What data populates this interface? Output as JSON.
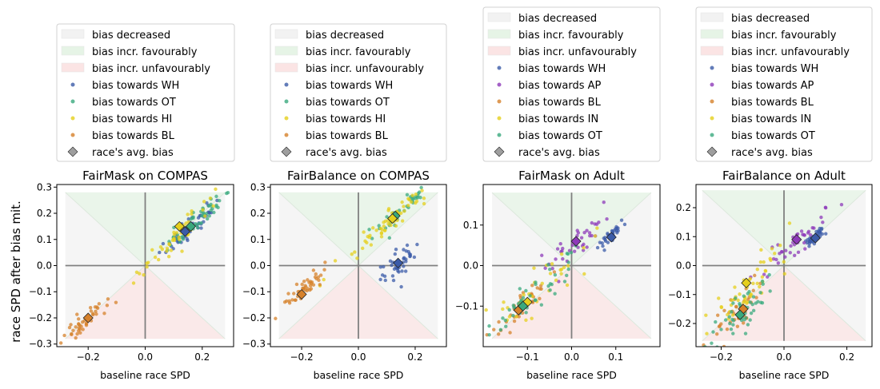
{
  "figure": {
    "ylabel": "race SPD after bias mit."
  },
  "colors": {
    "WH": "#3b5ba8",
    "OT": "#3aa97d",
    "HI": "#e5cf1c",
    "BL": "#d6812b",
    "AP": "#8e3ab9",
    "IN": "#e5cf1c",
    "region_decreased": "#f2f2f2",
    "region_favourably": "#e6f4e6",
    "region_unfavourably": "#fbe4e4",
    "avg_marker": "#9e9e9e",
    "axis_cross": "#808080"
  },
  "chart_data": [
    {
      "type": "scatter",
      "title": "FairMask on COMPAS",
      "xlabel": "baseline race SPD",
      "ylabel": "race SPD after bias mit.",
      "xlim": [
        -0.31,
        0.31
      ],
      "ylim": [
        -0.31,
        0.31
      ],
      "xticks": [
        -0.2,
        0.0,
        0.2
      ],
      "xtick_labels": [
        "−0.2",
        "0.0",
        "0.2"
      ],
      "yticks": [
        -0.3,
        -0.2,
        -0.1,
        0.0,
        0.1,
        0.2,
        0.3
      ],
      "ytick_labels": [
        "−0.3",
        "−0.2",
        "−0.1",
        "0.0",
        "0.1",
        "0.2",
        "0.3"
      ],
      "region_extent": 0.28,
      "legend": [
        {
          "label": "bias decreased",
          "kind": "patch",
          "color": "region_decreased"
        },
        {
          "label": "bias incr. favourably",
          "kind": "patch",
          "color": "region_favourably"
        },
        {
          "label": "bias incr. unfavourably",
          "kind": "patch",
          "color": "region_unfavourably"
        },
        {
          "label": "bias towards WH",
          "kind": "dot",
          "color": "WH"
        },
        {
          "label": "bias towards OT",
          "kind": "dot",
          "color": "OT"
        },
        {
          "label": "bias towards HI",
          "kind": "dot",
          "color": "HI"
        },
        {
          "label": "bias towards BL",
          "kind": "dot",
          "color": "BL"
        },
        {
          "label": "race's avg. bias",
          "kind": "diamond",
          "color": "avg_marker"
        }
      ],
      "series": [
        {
          "name": "bias towards WH",
          "group": "WH",
          "center": [
            0.15,
            0.14
          ],
          "count": 50,
          "spread": 0.05,
          "noise": 0.018,
          "avg": [
            0.14,
            0.13
          ]
        },
        {
          "name": "bias towards OT",
          "group": "OT",
          "center": [
            0.18,
            0.17
          ],
          "count": 50,
          "spread": 0.06,
          "noise": 0.02,
          "avg": [
            0.16,
            0.15
          ]
        },
        {
          "name": "bias towards HI",
          "group": "HI",
          "center": [
            0.12,
            0.12
          ],
          "count": 50,
          "spread": 0.07,
          "noise": 0.02,
          "avg": [
            0.12,
            0.15
          ]
        },
        {
          "name": "bias towards BL",
          "group": "BL",
          "center": [
            -0.2,
            -0.2
          ],
          "count": 45,
          "spread": 0.04,
          "noise": 0.018,
          "avg": [
            -0.2,
            -0.2
          ]
        }
      ]
    },
    {
      "type": "scatter",
      "title": "FairBalance on COMPAS",
      "xlabel": "baseline race SPD",
      "ylabel": "",
      "xlim": [
        -0.31,
        0.31
      ],
      "ylim": [
        -0.31,
        0.31
      ],
      "xticks": [
        -0.2,
        0.0,
        0.2
      ],
      "xtick_labels": [
        "−0.2",
        "0.0",
        "0.2"
      ],
      "yticks": [
        -0.3,
        -0.2,
        -0.1,
        0.0,
        0.1,
        0.2,
        0.3
      ],
      "ytick_labels": [
        "−0.3",
        "−0.2",
        "−0.1",
        "0.0",
        "0.1",
        "0.2",
        "0.3"
      ],
      "region_extent": 0.28,
      "legend": [
        {
          "label": "bias decreased",
          "kind": "patch",
          "color": "region_decreased"
        },
        {
          "label": "bias incr. favourably",
          "kind": "patch",
          "color": "region_favourably"
        },
        {
          "label": "bias incr. unfavourably",
          "kind": "patch",
          "color": "region_unfavourably"
        },
        {
          "label": "bias towards WH",
          "kind": "dot",
          "color": "WH"
        },
        {
          "label": "bias towards OT",
          "kind": "dot",
          "color": "OT"
        },
        {
          "label": "bias towards HI",
          "kind": "dot",
          "color": "HI"
        },
        {
          "label": "bias towards BL",
          "kind": "dot",
          "color": "BL"
        },
        {
          "label": "race's avg. bias",
          "kind": "diamond",
          "color": "avg_marker"
        }
      ],
      "series": [
        {
          "name": "bias towards WH",
          "group": "WH",
          "center": [
            0.14,
            0.0
          ],
          "count": 45,
          "spread": 0.03,
          "noise": 0.025,
          "avg": [
            0.14,
            0.01
          ]
        },
        {
          "name": "bias towards OT",
          "group": "OT",
          "center": [
            0.14,
            0.2
          ],
          "count": 40,
          "spread": 0.06,
          "noise": 0.018,
          "avg": [
            0.13,
            0.19
          ]
        },
        {
          "name": "bias towards HI",
          "group": "HI",
          "center": [
            0.11,
            0.17
          ],
          "count": 60,
          "spread": 0.09,
          "noise": 0.022,
          "avg": [
            0.12,
            0.18
          ]
        },
        {
          "name": "bias towards BL",
          "group": "BL",
          "center": [
            -0.2,
            -0.1
          ],
          "count": 45,
          "spread": 0.04,
          "noise": 0.015,
          "avg": [
            -0.2,
            -0.11
          ]
        }
      ]
    },
    {
      "type": "scatter",
      "title": "FairMask on Adult",
      "xlabel": "baseline race SPD",
      "ylabel": "",
      "xlim": [
        -0.2,
        0.2
      ],
      "ylim": [
        -0.2,
        0.2
      ],
      "xticks": [
        -0.1,
        0.0,
        0.1
      ],
      "xtick_labels": [
        "−0.1",
        "0.0",
        "0.1"
      ],
      "yticks": [
        -0.1,
        0.0,
        0.1
      ],
      "ytick_labels": [
        "−0.1",
        "0.0",
        "0.1"
      ],
      "region_extent": 0.18,
      "legend": [
        {
          "label": "bias decreased",
          "kind": "patch",
          "color": "region_decreased"
        },
        {
          "label": "bias incr. favourably",
          "kind": "patch",
          "color": "region_favourably"
        },
        {
          "label": "bias incr. unfavourably",
          "kind": "patch",
          "color": "region_unfavourably"
        },
        {
          "label": "bias towards WH",
          "kind": "dot",
          "color": "WH"
        },
        {
          "label": "bias towards AP",
          "kind": "dot",
          "color": "AP"
        },
        {
          "label": "bias towards BL",
          "kind": "dot",
          "color": "BL"
        },
        {
          "label": "bias towards IN",
          "kind": "dot",
          "color": "IN"
        },
        {
          "label": "bias towards OT",
          "kind": "dot",
          "color": "OT"
        },
        {
          "label": "race's avg. bias",
          "kind": "diamond",
          "color": "avg_marker"
        }
      ],
      "series": [
        {
          "name": "bias towards WH",
          "group": "WH",
          "center": [
            0.09,
            0.075
          ],
          "count": 40,
          "spread": 0.015,
          "noise": 0.008,
          "avg": [
            0.09,
            0.07
          ]
        },
        {
          "name": "bias towards AP",
          "group": "AP",
          "center": [
            0.005,
            0.05
          ],
          "count": 40,
          "spread": 0.04,
          "noise": 0.02,
          "avg": [
            0.01,
            0.06
          ]
        },
        {
          "name": "bias towards BL",
          "group": "BL",
          "center": [
            -0.11,
            -0.1
          ],
          "count": 40,
          "spread": 0.03,
          "noise": 0.012,
          "avg": [
            -0.12,
            -0.11
          ]
        },
        {
          "name": "bias towards IN",
          "group": "IN",
          "center": [
            -0.09,
            -0.08
          ],
          "count": 40,
          "spread": 0.07,
          "noise": 0.025,
          "avg": [
            -0.1,
            -0.09
          ]
        },
        {
          "name": "bias towards OT",
          "group": "OT",
          "center": [
            -0.11,
            -0.1
          ],
          "count": 50,
          "spread": 0.06,
          "noise": 0.02,
          "avg": [
            -0.11,
            -0.1
          ]
        }
      ]
    },
    {
      "type": "scatter",
      "title": "FairBalance on Adult",
      "xlabel": "baseline race SPD",
      "ylabel": "",
      "xlim": [
        -0.28,
        0.28
      ],
      "ylim": [
        -0.28,
        0.28
      ],
      "xticks": [
        -0.2,
        0.0,
        0.2
      ],
      "xtick_labels": [
        "−0.2",
        "0.0",
        "0.2"
      ],
      "yticks": [
        -0.2,
        -0.1,
        0.0,
        0.1,
        0.2
      ],
      "ytick_labels": [
        "−0.2",
        "−0.1",
        "0.0",
        "0.1",
        "0.2"
      ],
      "region_extent": 0.26,
      "legend": [
        {
          "label": "bias decreased",
          "kind": "patch",
          "color": "region_decreased"
        },
        {
          "label": "bias incr. favourably",
          "kind": "patch",
          "color": "region_favourably"
        },
        {
          "label": "bias incr. unfavourably",
          "kind": "patch",
          "color": "region_unfavourably"
        },
        {
          "label": "bias towards WH",
          "kind": "dot",
          "color": "WH"
        },
        {
          "label": "bias towards AP",
          "kind": "dot",
          "color": "AP"
        },
        {
          "label": "bias towards BL",
          "kind": "dot",
          "color": "BL"
        },
        {
          "label": "bias towards IN",
          "kind": "dot",
          "color": "IN"
        },
        {
          "label": "bias towards OT",
          "kind": "dot",
          "color": "OT"
        },
        {
          "label": "race's avg. bias",
          "kind": "diamond",
          "color": "avg_marker"
        }
      ],
      "series": [
        {
          "name": "bias towards WH",
          "group": "WH",
          "center": [
            0.1,
            0.1
          ],
          "count": 40,
          "spread": 0.015,
          "noise": 0.008,
          "avg": [
            0.1,
            0.095
          ]
        },
        {
          "name": "bias towards AP",
          "group": "AP",
          "center": [
            0.04,
            0.08
          ],
          "count": 40,
          "spread": 0.05,
          "noise": 0.02,
          "avg": [
            0.04,
            0.09
          ]
        },
        {
          "name": "bias towards BL",
          "group": "BL",
          "center": [
            -0.14,
            -0.15
          ],
          "count": 40,
          "spread": 0.04,
          "noise": 0.025,
          "avg": [
            -0.13,
            -0.15
          ]
        },
        {
          "name": "bias towards IN",
          "group": "IN",
          "center": [
            -0.12,
            -0.07
          ],
          "count": 50,
          "spread": 0.06,
          "noise": 0.035,
          "avg": [
            -0.12,
            -0.06
          ]
        },
        {
          "name": "bias towards OT",
          "group": "OT",
          "center": [
            -0.14,
            -0.17
          ],
          "count": 50,
          "spread": 0.04,
          "noise": 0.035,
          "avg": [
            -0.14,
            -0.17
          ]
        }
      ]
    }
  ]
}
